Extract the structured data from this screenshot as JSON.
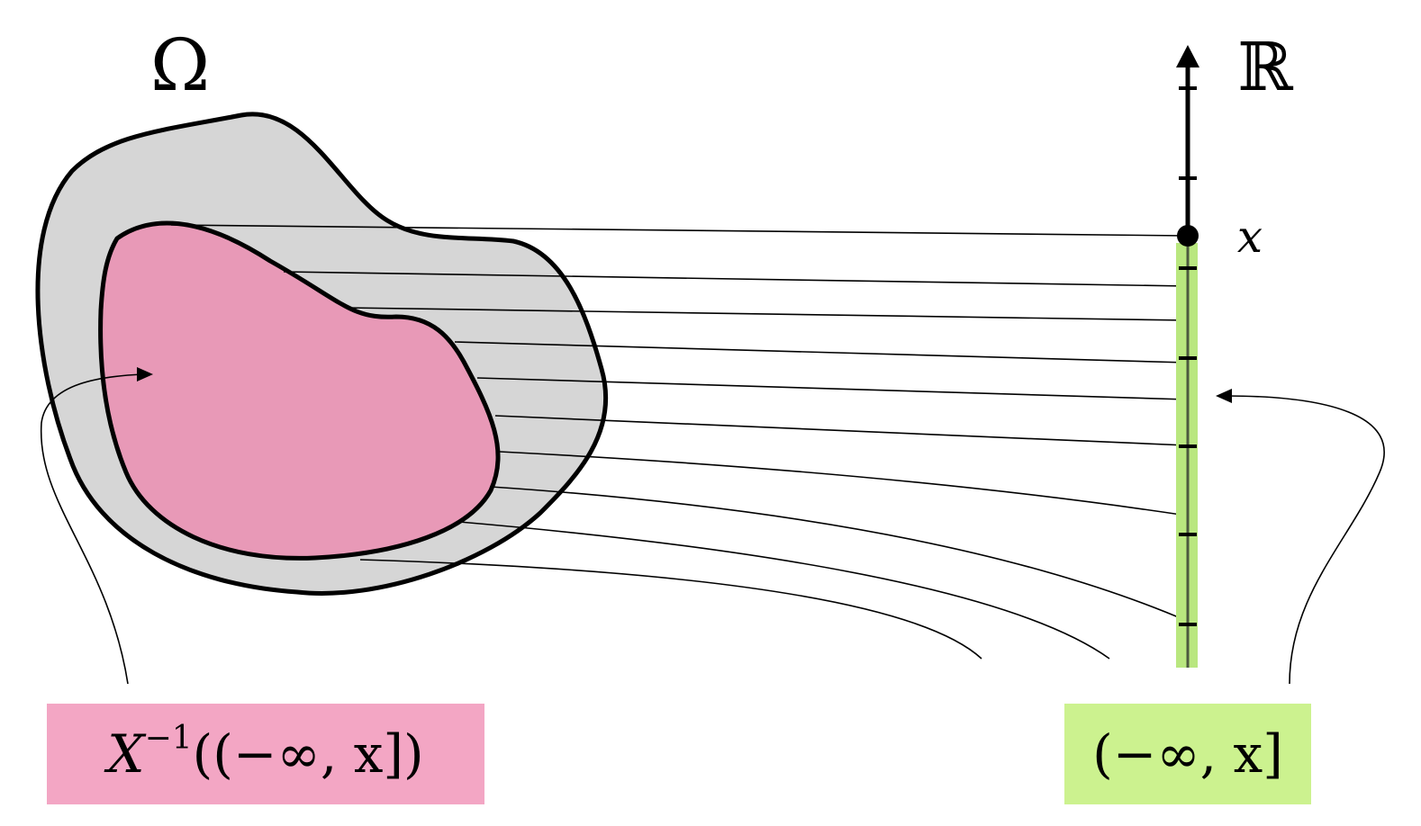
{
  "labels": {
    "omega": "Ω",
    "reals": "ℝ",
    "point": "x",
    "preimage_base": "X",
    "preimage_exponent": "−1",
    "preimage_argument": "((−∞, x])",
    "interval": "(−∞, x]"
  },
  "colors": {
    "outline": "#000000",
    "omega_fill": "#d6d6d6",
    "preimage_fill": "#e899b7",
    "preimage_label_bg": "#f3a6c4",
    "interval_highlight": "#b9e77f",
    "interval_label_bg": "#ccf28f",
    "interval_ticks": "#4d5a3f"
  }
}
